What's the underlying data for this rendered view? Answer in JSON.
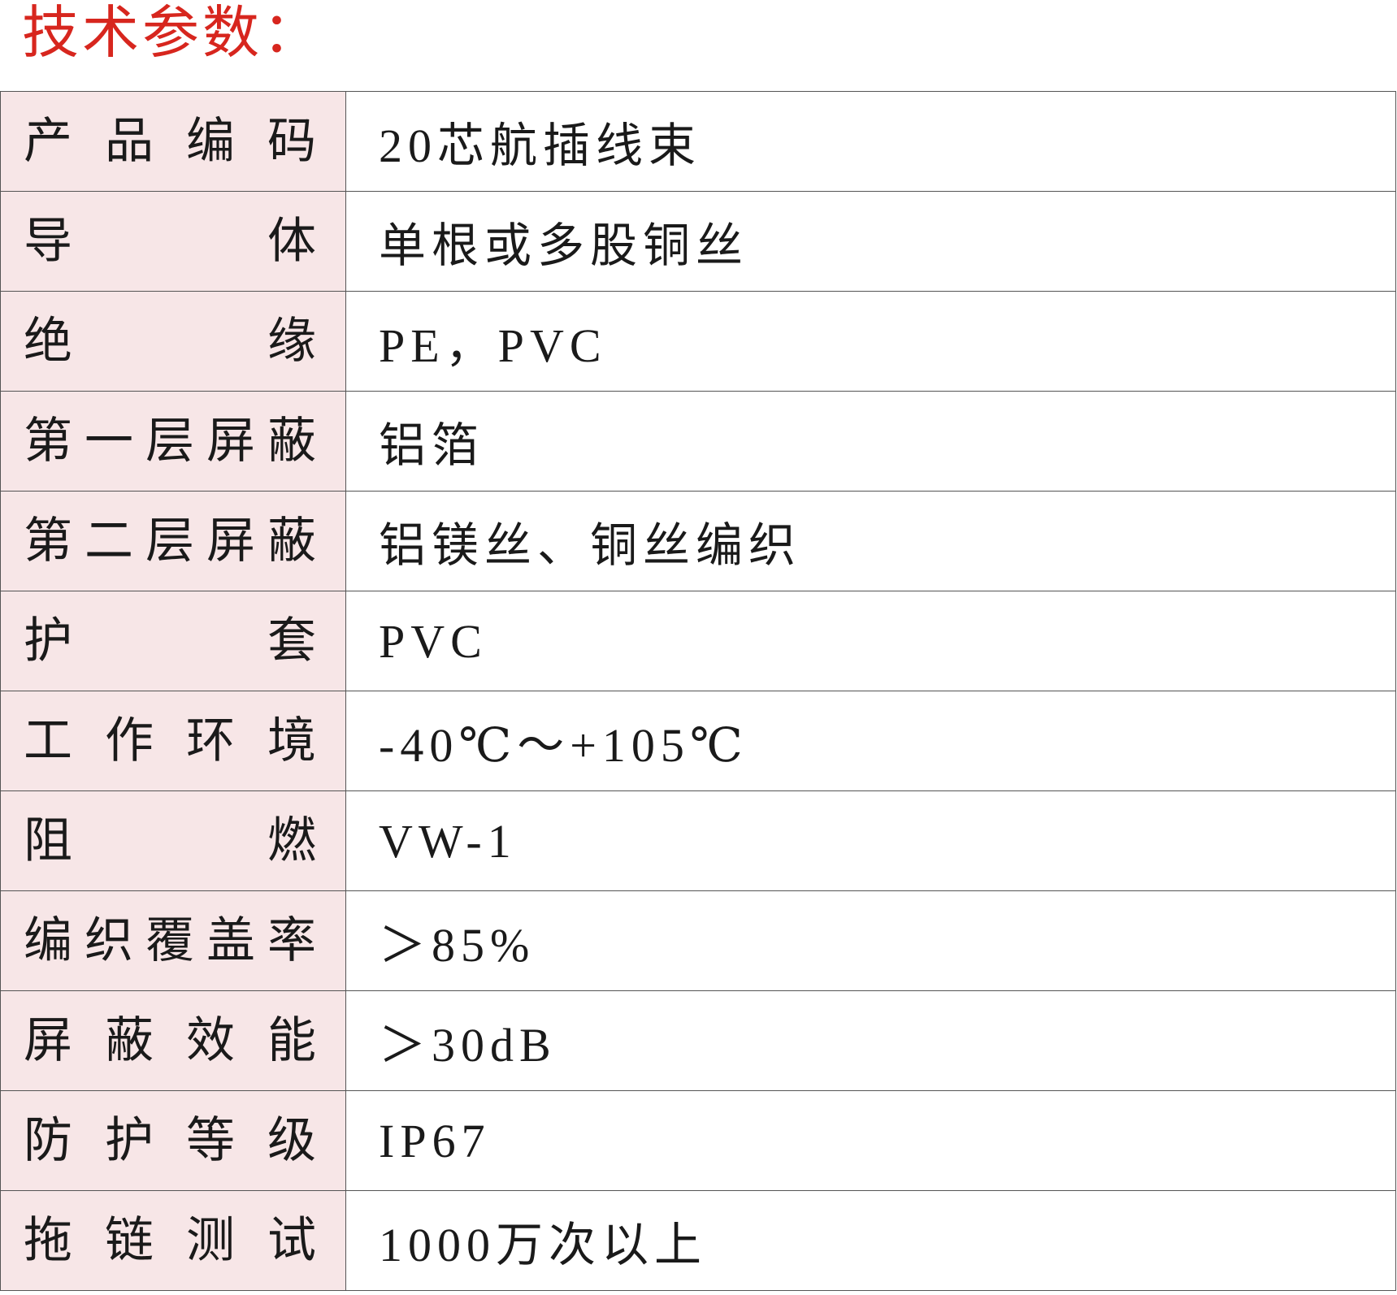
{
  "title": "技术参数：",
  "colors": {
    "title": "#d7261e",
    "label_bg": "#f7e6e7",
    "border": "#555555"
  },
  "rows": [
    {
      "label": "产品编码",
      "value": "20芯航插线束"
    },
    {
      "label": "导体",
      "value": "单根或多股铜丝"
    },
    {
      "label": "绝缘",
      "value": "PE，PVC"
    },
    {
      "label": "第一层屏蔽",
      "value": "铝箔"
    },
    {
      "label": "第二层屏蔽",
      "value": "铝镁丝、铜丝编织"
    },
    {
      "label": "护套",
      "value": "PVC"
    },
    {
      "label": "工作环境",
      "value": "-40℃～+105℃"
    },
    {
      "label": "阻燃",
      "value": "VW-1"
    },
    {
      "label": "编织覆盖率",
      "value": "＞85%"
    },
    {
      "label": "屏蔽效能",
      "value": "＞30dB"
    },
    {
      "label": "防护等级",
      "value": "IP67"
    },
    {
      "label": "拖链测试",
      "value": "1000万次以上"
    }
  ]
}
